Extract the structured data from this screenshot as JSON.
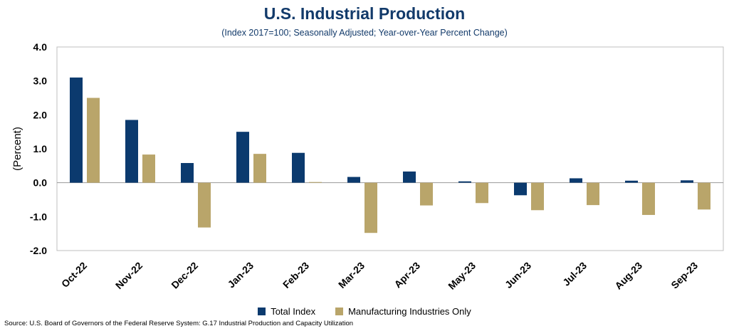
{
  "chart_data": {
    "type": "bar",
    "title": "U.S. Industrial Production",
    "subtitle": "(Index 2017=100; Seasonally Adjusted; Year-over-Year Percent Change)",
    "ylabel": "(Percent)",
    "xlabel": "",
    "ylim": [
      -2.0,
      4.0
    ],
    "yticks": [
      "4.0",
      "3.0",
      "2.0",
      "1.0",
      "0.0",
      "-1.0",
      "-2.0"
    ],
    "ytick_values": [
      4,
      3,
      2,
      1,
      0,
      -1,
      -2
    ],
    "categories": [
      "Oct-22",
      "Nov-22",
      "Dec-22",
      "Jan-23",
      "Feb-23",
      "Mar-23",
      "Apr-23",
      "May-23",
      "Jun-23",
      "Jul-23",
      "Aug-23",
      "Sep-23"
    ],
    "series": [
      {
        "name": "Total Index",
        "color": "#0b3a6e",
        "values": [
          3.1,
          1.85,
          0.58,
          1.5,
          0.88,
          0.17,
          0.33,
          0.04,
          -0.37,
          0.13,
          0.06,
          0.07
        ]
      },
      {
        "name": "Manufacturing Industries Only",
        "color": "#b9a56a",
        "values": [
          2.5,
          0.83,
          -1.32,
          0.85,
          0.02,
          -1.48,
          -0.67,
          -0.6,
          -0.81,
          -0.66,
          -0.95,
          -0.79
        ]
      }
    ],
    "grid": false,
    "legend_position": "bottom-center",
    "source": "Source: U.S. Board of Governors of the Federal Reserve System: G.17 Industrial Production and Capacity Utilization"
  }
}
